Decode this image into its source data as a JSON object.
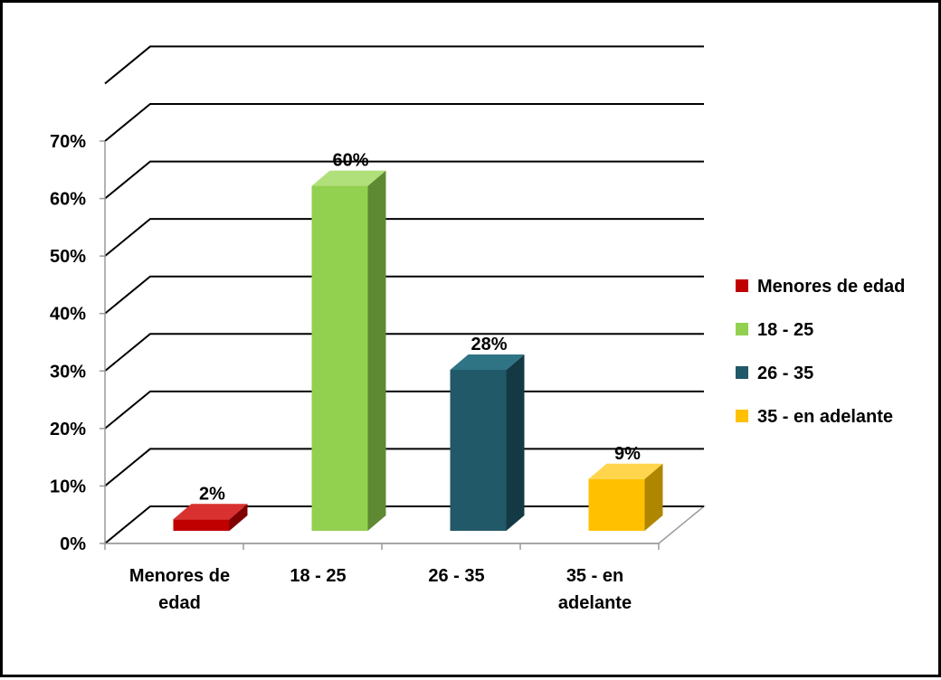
{
  "chart_data": {
    "type": "bar",
    "style": "3d-column",
    "categories": [
      [
        "Menores de",
        "edad"
      ],
      [
        "18 - 25"
      ],
      [
        "26 - 35"
      ],
      [
        "35 - en",
        "adelante"
      ]
    ],
    "values": [
      2,
      60,
      28,
      9
    ],
    "value_labels": [
      "2%",
      "60%",
      "28%",
      "9%"
    ],
    "y_ticks": [
      "0%",
      "10%",
      "20%",
      "30%",
      "40%",
      "50%",
      "60%",
      "70%"
    ],
    "ylim": [
      0,
      70
    ],
    "grid": true,
    "legend": {
      "placement": "right",
      "entries": [
        "Menores de edad",
        "18 - 25",
        "26 - 35",
        "35 - en adelante"
      ]
    },
    "colors": {
      "front": [
        "#c00000",
        "#92d050",
        "#215968",
        "#ffc000"
      ],
      "side": [
        "#7f0000",
        "#5e8a33",
        "#133a44",
        "#b08600"
      ],
      "top": [
        "#d93030",
        "#b0e07a",
        "#2f7485",
        "#ffd54d"
      ]
    }
  }
}
